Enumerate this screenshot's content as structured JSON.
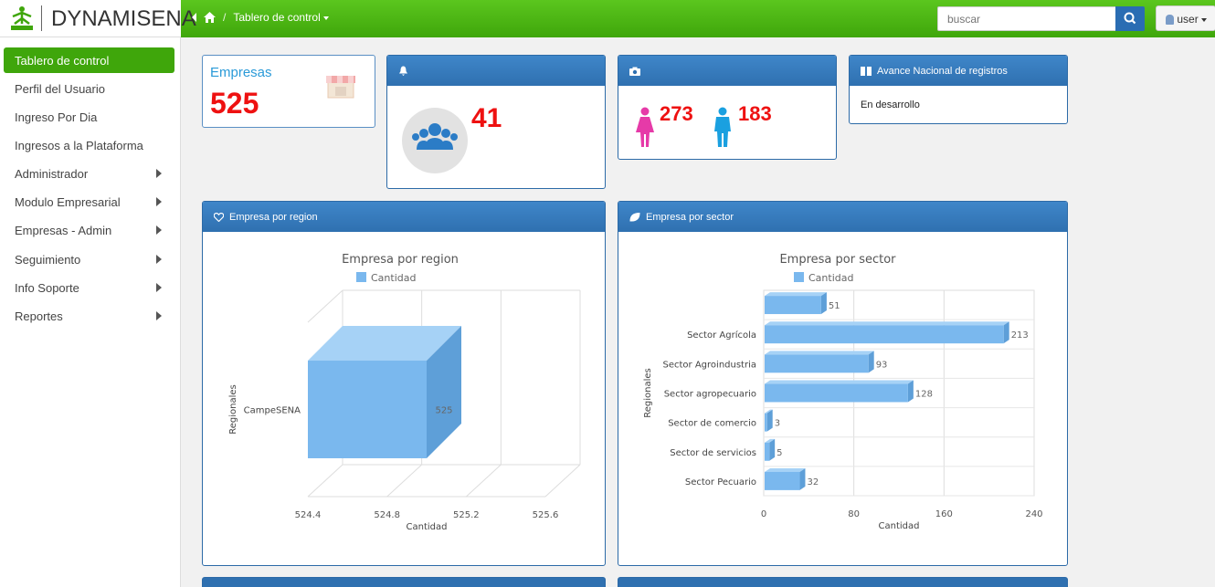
{
  "brand": {
    "name": "DYNAMISENA",
    "logo_text": "SENA"
  },
  "breadcrumb": {
    "current": "Tablero de control"
  },
  "search": {
    "placeholder": "buscar"
  },
  "user": {
    "label": "user"
  },
  "sidebar": {
    "items": [
      {
        "label": "Tablero de control",
        "active": true
      },
      {
        "label": "Perfil del Usuario"
      },
      {
        "label": "Ingreso Por Dia"
      },
      {
        "label": "Ingresos a la Plataforma"
      },
      {
        "label": "Administrador",
        "submenu": true
      },
      {
        "label": "Modulo Empresarial",
        "submenu": true
      },
      {
        "label": "Empresas - Admin",
        "submenu": true
      },
      {
        "label": "Seguimiento",
        "submenu": true
      },
      {
        "label": "Info Soporte",
        "submenu": true
      },
      {
        "label": "Reportes",
        "submenu": true
      }
    ]
  },
  "cards": {
    "empresas": {
      "title": "Empresas",
      "value": "525"
    },
    "users": {
      "value": "41"
    },
    "gender": {
      "women": "273",
      "men": "183"
    },
    "avance": {
      "title": "Avance Nacional de registros",
      "body": "En desarrollo"
    }
  },
  "panels": {
    "region_title": "Empresa por region",
    "sector_title": "Empresa por sector"
  },
  "colors": {
    "accent_green": "#3fa60b",
    "panel_blue": "#2f70b0",
    "bar_blue": "#7ab8ee",
    "value_red": "#e11111"
  },
  "chart_data": [
    {
      "type": "bar",
      "orientation": "horizontal",
      "style": "3d",
      "title": "Empresa por region",
      "legend": "Cantidad",
      "xlabel": "Cantidad",
      "ylabel": "Regionales",
      "categories": [
        "CampeSENA"
      ],
      "values": [
        525
      ],
      "xticks": [
        "524.4",
        "524.8",
        "525.2",
        "525.6"
      ],
      "xlim": [
        524.4,
        525.6
      ]
    },
    {
      "type": "bar",
      "orientation": "horizontal",
      "style": "3d",
      "title": "Empresa por sector",
      "legend": "Cantidad",
      "xlabel": "Cantidad",
      "ylabel": "Regionales",
      "categories": [
        "",
        "Sector Agrícola",
        "Sector Agroindustria",
        "Sector agropecuario",
        "Sector de comercio",
        "Sector de servicios",
        "Sector Pecuario"
      ],
      "values": [
        51,
        213,
        93,
        128,
        3,
        5,
        32
      ],
      "xticks": [
        "0",
        "80",
        "160",
        "240"
      ],
      "xlim": [
        0,
        240
      ]
    }
  ]
}
